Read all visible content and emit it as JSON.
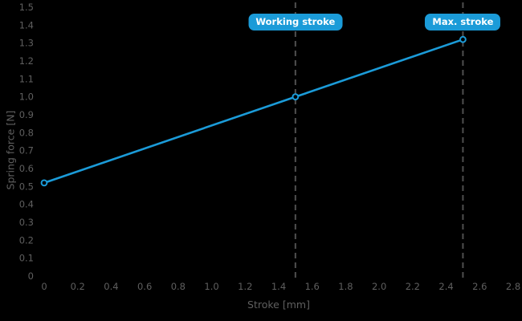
{
  "chart_data": {
    "type": "line",
    "title": "",
    "xlabel": "Stroke [mm]",
    "ylabel": "Spring force [N]",
    "xlim": [
      0,
      2.8
    ],
    "ylim": [
      0,
      1.5
    ],
    "x_ticks": [
      0,
      0.2,
      0.4,
      0.6,
      0.8,
      1.0,
      1.2,
      1.4,
      1.6,
      1.8,
      2.0,
      2.2,
      2.4,
      2.6,
      2.8
    ],
    "y_ticks": [
      0,
      0.1,
      0.2,
      0.3,
      0.4,
      0.5,
      0.6,
      0.7,
      0.8,
      0.9,
      1.0,
      1.1,
      1.2,
      1.3,
      1.4,
      1.5
    ],
    "grid": false,
    "legend": "none",
    "series": [
      {
        "name": "Spring force",
        "color": "#1b9bd8",
        "marker": "open-circle",
        "points": [
          {
            "x": 0,
            "y": 0.52
          },
          {
            "x": 1.5,
            "y": 1.0
          },
          {
            "x": 2.5,
            "y": 1.32
          }
        ]
      }
    ],
    "annotations": [
      {
        "label": "Working stroke",
        "x": 1.5
      },
      {
        "label": "Max. stroke",
        "x": 2.5
      }
    ],
    "colors": {
      "background": "#000000",
      "axis_text": "#5f5f5f",
      "guide_line": "#4f4f4f",
      "badge_bg": "#1b9bd8",
      "badge_text": "#ffffff"
    }
  }
}
